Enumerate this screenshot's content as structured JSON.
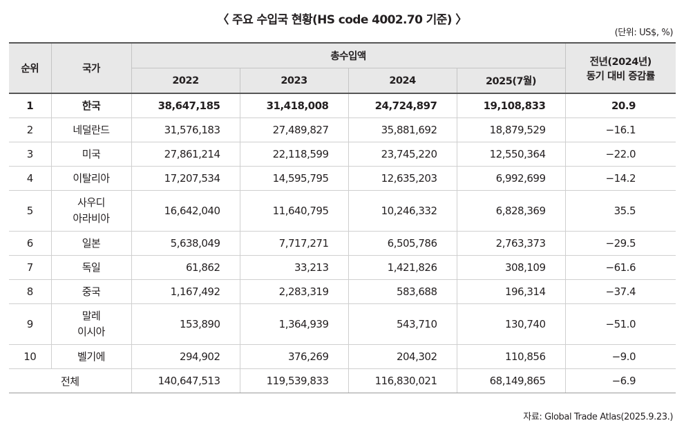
{
  "title": "〈 주요 수입국 현황(HS code 4002.70 기준) 〉",
  "unit": "(단위: US$, %)",
  "source": "자료: Global Trade Atlas(2025.9.23.)",
  "header": {
    "rank": "순위",
    "country": "국가",
    "total_import": "총수입액",
    "change_line1": "전년(2024년)",
    "change_line2": "동기 대비 증감률",
    "years": [
      "2022",
      "2023",
      "2024",
      "2025(7월)"
    ]
  },
  "rows": [
    {
      "rank": "1",
      "country": [
        "한국"
      ],
      "v": [
        "38,647,185",
        "31,418,008",
        "24,724,897",
        "19,108,833"
      ],
      "chg": "20.9"
    },
    {
      "rank": "2",
      "country": [
        "네덜란드"
      ],
      "v": [
        "31,576,183",
        "27,489,827",
        "35,881,692",
        "18,879,529"
      ],
      "chg": "−16.1"
    },
    {
      "rank": "3",
      "country": [
        "미국"
      ],
      "v": [
        "27,861,214",
        "22,118,599",
        "23,745,220",
        "12,550,364"
      ],
      "chg": "−22.0"
    },
    {
      "rank": "4",
      "country": [
        "이탈리아"
      ],
      "v": [
        "17,207,534",
        "14,595,795",
        "12,635,203",
        "6,992,699"
      ],
      "chg": "−14.2"
    },
    {
      "rank": "5",
      "country": [
        "사우디",
        "아라비아"
      ],
      "v": [
        "16,642,040",
        "11,640,795",
        "10,246,332",
        "6,828,369"
      ],
      "chg": "35.5"
    },
    {
      "rank": "6",
      "country": [
        "일본"
      ],
      "v": [
        "5,638,049",
        "7,717,271",
        "6,505,786",
        "2,763,373"
      ],
      "chg": "−29.5"
    },
    {
      "rank": "7",
      "country": [
        "독일"
      ],
      "v": [
        "61,862",
        "33,213",
        "1,421,826",
        "308,109"
      ],
      "chg": "−61.6"
    },
    {
      "rank": "8",
      "country": [
        "중국"
      ],
      "v": [
        "1,167,492",
        "2,283,319",
        "583,688",
        "196,314"
      ],
      "chg": "−37.4"
    },
    {
      "rank": "9",
      "country": [
        "말레",
        "이시아"
      ],
      "v": [
        "153,890",
        "1,364,939",
        "543,710",
        "130,740"
      ],
      "chg": "−51.0"
    },
    {
      "rank": "10",
      "country": [
        "벨기에"
      ],
      "v": [
        "294,902",
        "376,269",
        "204,302",
        "110,856"
      ],
      "chg": "−9.0"
    }
  ],
  "total": {
    "label": "전체",
    "v": [
      "140,647,513",
      "119,539,833",
      "116,830,021",
      "68,149,865"
    ],
    "chg": "−6.9"
  }
}
